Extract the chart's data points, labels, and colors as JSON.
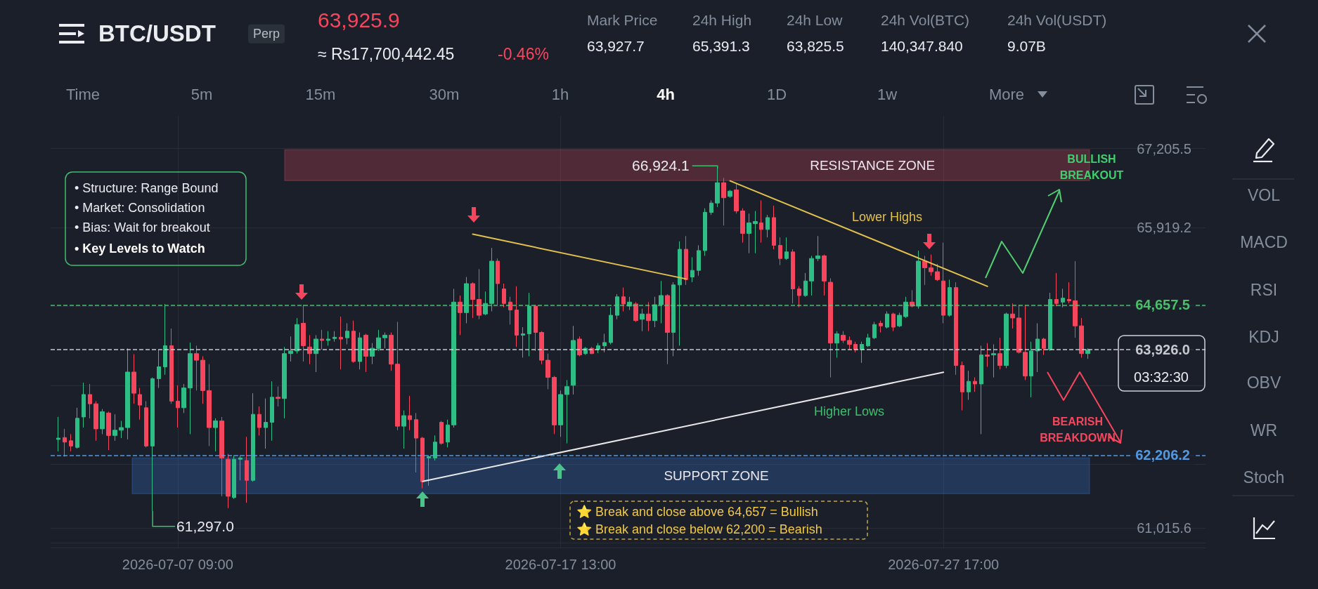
{
  "chart_data": {
    "type": "candlestick",
    "title": "BTC/USDT",
    "annotations": [
      "Perp",
      "63,925.9",
      "≈ Rs17,700,442.45",
      "-0.46%",
      "Mark Price",
      "63,927.7",
      "24h High",
      "65,391.3",
      "24h Low",
      "63,825.5",
      "24h Vol(BTC)",
      "140,347.840",
      "24h Vol(USDT)",
      "9.07B",
      "Time",
      "5m",
      "15m",
      "30m",
      "1h",
      "4h",
      "1D",
      "1w",
      "More",
      "VOL",
      "MACD",
      "RSI",
      "KDJ",
      "OBV",
      "WR",
      "Stoch",
      "• Structure: Range Bound",
      "• Market: Consolidation",
      "• Bias: Wait for breakout",
      "• Key Levels to Watch",
      "⭐ Break and close above 64,657 = Bullish",
      "⭐ Break and close below 62,200 = Bearish",
      {
        "text": "66,924.1",
        "x": "2026-07-21T17:00",
        "y": 66924.1
      },
      {
        "text": "61,297.0",
        "x": "2026-07-06T17:00",
        "y": 61297.0
      },
      "Lower Highs",
      "Higher Lows",
      "BULLISH BREAKOUT",
      "BEARISH BREAKDOWN",
      "03:32:30"
    ],
    "x": [
      "2026-07-04T05:00",
      "2026-07-04T09:00",
      "2026-07-04T13:00",
      "2026-07-04T17:00",
      "2026-07-04T21:00",
      "2026-07-05T01:00",
      "2026-07-05T05:00",
      "2026-07-05T09:00",
      "2026-07-05T13:00",
      "2026-07-05T17:00",
      "2026-07-05T21:00",
      "2026-07-06T01:00",
      "2026-07-06T05:00",
      "2026-07-06T09:00",
      "2026-07-06T13:00",
      "2026-07-06T17:00",
      "2026-07-06T21:00",
      "2026-07-07T01:00",
      "2026-07-07T05:00",
      "2026-07-07T09:00",
      "2026-07-07T13:00",
      "2026-07-07T17:00",
      "2026-07-07T21:00",
      "2026-07-08T01:00",
      "2026-07-08T05:00",
      "2026-07-08T09:00",
      "2026-07-08T13:00",
      "2026-07-08T17:00",
      "2026-07-08T21:00",
      "2026-07-09T01:00",
      "2026-07-09T05:00",
      "2026-07-09T09:00",
      "2026-07-09T13:00",
      "2026-07-09T17:00",
      "2026-07-09T21:00",
      "2026-07-10T01:00",
      "2026-07-10T05:00",
      "2026-07-10T09:00",
      "2026-07-10T13:00",
      "2026-07-10T17:00",
      "2026-07-10T21:00",
      "2026-07-11T01:00",
      "2026-07-11T05:00",
      "2026-07-11T09:00",
      "2026-07-11T13:00",
      "2026-07-11T17:00",
      "2026-07-11T21:00",
      "2026-07-12T01:00",
      "2026-07-12T05:00",
      "2026-07-12T09:00",
      "2026-07-12T13:00",
      "2026-07-12T17:00",
      "2026-07-12T21:00",
      "2026-07-13T01:00",
      "2026-07-13T05:00",
      "2026-07-13T09:00",
      "2026-07-13T13:00",
      "2026-07-13T17:00",
      "2026-07-13T21:00",
      "2026-07-14T01:00",
      "2026-07-14T05:00",
      "2026-07-14T09:00",
      "2026-07-14T13:00",
      "2026-07-14T17:00",
      "2026-07-14T21:00",
      "2026-07-15T01:00",
      "2026-07-15T05:00",
      "2026-07-15T09:00",
      "2026-07-15T13:00",
      "2026-07-15T17:00",
      "2026-07-15T21:00",
      "2026-07-16T01:00",
      "2026-07-16T05:00",
      "2026-07-16T09:00",
      "2026-07-16T13:00",
      "2026-07-16T17:00",
      "2026-07-16T21:00",
      "2026-07-17T01:00",
      "2026-07-17T05:00",
      "2026-07-17T09:00",
      "2026-07-17T13:00",
      "2026-07-17T17:00",
      "2026-07-17T21:00",
      "2026-07-18T01:00",
      "2026-07-18T05:00",
      "2026-07-18T09:00",
      "2026-07-18T13:00",
      "2026-07-18T17:00",
      "2026-07-18T21:00",
      "2026-07-19T01:00",
      "2026-07-19T05:00",
      "2026-07-19T09:00",
      "2026-07-19T13:00",
      "2026-07-19T17:00",
      "2026-07-19T21:00",
      "2026-07-20T01:00",
      "2026-07-20T05:00",
      "2026-07-20T09:00",
      "2026-07-20T13:00",
      "2026-07-20T17:00",
      "2026-07-20T21:00",
      "2026-07-21T01:00",
      "2026-07-21T05:00",
      "2026-07-21T09:00",
      "2026-07-21T13:00",
      "2026-07-21T17:00",
      "2026-07-21T21:00",
      "2026-07-22T01:00",
      "2026-07-22T05:00",
      "2026-07-22T09:00",
      "2026-07-22T13:00",
      "2026-07-22T17:00",
      "2026-07-22T21:00",
      "2026-07-23T01:00",
      "2026-07-23T05:00",
      "2026-07-23T09:00",
      "2026-07-23T13:00",
      "2026-07-23T17:00",
      "2026-07-23T21:00",
      "2026-07-24T01:00",
      "2026-07-24T05:00",
      "2026-07-24T09:00",
      "2026-07-24T13:00",
      "2026-07-24T17:00",
      "2026-07-24T21:00",
      "2026-07-25T01:00",
      "2026-07-25T05:00",
      "2026-07-25T09:00",
      "2026-07-25T13:00",
      "2026-07-25T17:00",
      "2026-07-25T21:00",
      "2026-07-26T01:00",
      "2026-07-26T05:00",
      "2026-07-26T09:00",
      "2026-07-26T13:00",
      "2026-07-26T17:00",
      "2026-07-26T21:00",
      "2026-07-27T01:00",
      "2026-07-27T05:00",
      "2026-07-27T09:00",
      "2026-07-27T13:00",
      "2026-07-27T17:00",
      "2026-07-27T21:00",
      "2026-07-28T01:00",
      "2026-07-28T05:00",
      "2026-07-28T09:00",
      "2026-07-28T13:00",
      "2026-07-28T17:00",
      "2026-07-28T21:00",
      "2026-07-29T01:00",
      "2026-07-29T05:00",
      "2026-07-29T09:00",
      "2026-07-29T13:00",
      "2026-07-29T17:00",
      "2026-07-29T21:00",
      "2026-07-30T01:00",
      "2026-07-30T05:00",
      "2026-07-30T09:00",
      "2026-07-30T13:00",
      "2026-07-30T17:00",
      "2026-07-30T21:00",
      "2026-07-31T01:00",
      "2026-07-31T05:00",
      "2026-07-31T09:00",
      "2026-07-31T13:00"
    ],
    "ohlc": [
      [
        62464,
        62830,
        62270,
        62485
      ],
      [
        62494,
        62636,
        62183,
        62420
      ],
      [
        62442,
        62550,
        62270,
        62356
      ],
      [
        62334,
        62980,
        62313,
        62808
      ],
      [
        62830,
        63389,
        62657,
        63196
      ],
      [
        63196,
        63368,
        62808,
        63045
      ],
      [
        63045,
        63088,
        62442,
        62636
      ],
      [
        62636,
        62959,
        62550,
        62916
      ],
      [
        62894,
        62916,
        62291,
        62528
      ],
      [
        62528,
        62873,
        62442,
        62614
      ],
      [
        62614,
        62765,
        62485,
        62657
      ],
      [
        62657,
        63949,
        62464,
        63562
      ],
      [
        63562,
        63854,
        63045,
        63217
      ],
      [
        63196,
        63303,
        62786,
        63023
      ],
      [
        62980,
        63088,
        62334,
        62356
      ],
      [
        62356,
        63475,
        61297.0,
        63454
      ],
      [
        63454,
        63928,
        63303,
        63648
      ],
      [
        63648,
        64673,
        63518,
        63992
      ],
      [
        63992,
        64272,
        63045,
        63088
      ],
      [
        63088,
        63346,
        62657,
        62980
      ],
      [
        62980,
        63368,
        62894,
        63303
      ],
      [
        63303,
        64044,
        62550,
        63863
      ],
      [
        63863,
        63992,
        63260,
        63755
      ],
      [
        63755,
        63820,
        63045,
        63260
      ],
      [
        63260,
        63691,
        62356,
        62657
      ],
      [
        62657,
        62808,
        62270,
        62765
      ],
      [
        62765,
        62830,
        61537,
        62162
      ],
      [
        62140,
        62227,
        61343,
        61537
      ],
      [
        61516,
        62205,
        61494,
        62140
      ],
      [
        62140,
        62205,
        61796,
        62162
      ],
      [
        62119,
        62506,
        61429,
        61796
      ],
      [
        61796,
        63217,
        61774,
        62873
      ],
      [
        62873,
        63002,
        62528,
        62657
      ],
      [
        62657,
        63131,
        62313,
        62743
      ],
      [
        62743,
        63411,
        62442,
        63152
      ],
      [
        63152,
        63325,
        63002,
        63131
      ],
      [
        63131,
        63971,
        62808,
        63863
      ],
      [
        63863,
        64143,
        63734,
        63906
      ],
      [
        63906,
        64444,
        63863,
        64337
      ],
      [
        64358,
        64660,
        63734,
        63992
      ],
      [
        63971,
        64164,
        63691,
        63863
      ],
      [
        63863,
        64164,
        63562,
        64100
      ],
      [
        64100,
        64251,
        63928,
        64078
      ],
      [
        64078,
        64229,
        63992,
        64100
      ],
      [
        64109,
        64229,
        64057,
        64130
      ],
      [
        64130,
        64466,
        63605,
        64100
      ],
      [
        64121,
        64358,
        64014,
        64229
      ],
      [
        64229,
        64401,
        63712,
        63734
      ],
      [
        63734,
        64208,
        63605,
        64121
      ],
      [
        64164,
        64186,
        63562,
        63820
      ],
      [
        63820,
        64035,
        63691,
        63949
      ],
      [
        63949,
        64251,
        63906,
        64121
      ],
      [
        64121,
        64208,
        63949,
        64164
      ],
      [
        64164,
        64208,
        63583,
        63691
      ],
      [
        63691,
        64380,
        62614,
        62679
      ],
      [
        62679,
        62937,
        62313,
        62851
      ],
      [
        62851,
        63174,
        62614,
        62786
      ],
      [
        62786,
        62894,
        61925,
        62485
      ],
      [
        62485,
        62506,
        61667,
        61774
      ],
      [
        62162,
        62205,
        61710,
        62183
      ],
      [
        62162,
        62528,
        62119,
        62420
      ],
      [
        62743,
        62765,
        62377,
        62399
      ],
      [
        62420,
        62786,
        62334,
        62700
      ],
      [
        62700,
        64919,
        62657,
        64703
      ],
      [
        64703,
        64811,
        64164,
        64531
      ],
      [
        64531,
        65112,
        64358,
        65004
      ],
      [
        65004,
        65026,
        64444,
        64746
      ],
      [
        64746,
        65241,
        64423,
        64488
      ],
      [
        64509,
        64875,
        64488,
        64681
      ],
      [
        64681,
        65586,
        64552,
        65371
      ],
      [
        65371,
        65414,
        64660,
        65004
      ],
      [
        64918,
        65004,
        64617,
        64681
      ],
      [
        64703,
        64789,
        64337,
        64574
      ],
      [
        64574,
        64961,
        63971,
        64164
      ],
      [
        64164,
        64294,
        63798,
        64186
      ],
      [
        64186,
        64854,
        63820,
        64638
      ],
      [
        64638,
        64660,
        63906,
        64208
      ],
      [
        64208,
        64229,
        63691,
        63755
      ],
      [
        63755,
        63863,
        63282,
        63475
      ],
      [
        63475,
        63497,
        62550,
        62700
      ],
      [
        62700,
        63260,
        62506,
        63196
      ],
      [
        63196,
        63432,
        62399,
        63325
      ],
      [
        63346,
        64315,
        63196,
        64078
      ],
      [
        64100,
        64143,
        63820,
        63841
      ],
      [
        63863,
        63971,
        63841,
        63949
      ],
      [
        63949,
        63971,
        63854,
        63863
      ],
      [
        63928,
        64035,
        63871,
        63992
      ],
      [
        63992,
        64186,
        63884,
        64044
      ],
      [
        64044,
        64617,
        64014,
        64488
      ],
      [
        64488,
        64832,
        64423,
        64789
      ],
      [
        64789,
        64940,
        64552,
        64673
      ],
      [
        64638,
        64789,
        64574,
        64703
      ],
      [
        64673,
        64703,
        64380,
        64401
      ],
      [
        64423,
        64595,
        64229,
        64509
      ],
      [
        64509,
        64703,
        64229,
        64401
      ],
      [
        64401,
        64789,
        64294,
        64660
      ],
      [
        64660,
        65047,
        64358,
        64810
      ],
      [
        64810,
        64832,
        63691,
        64208
      ],
      [
        64208,
        65026,
        63820,
        64983
      ],
      [
        64983,
        65694,
        63992,
        65564
      ],
      [
        65564,
        65780,
        64983,
        65069
      ],
      [
        65112,
        65435,
        65026,
        65220
      ],
      [
        65220,
        65629,
        65134,
        65543
      ],
      [
        65543,
        66232,
        65457,
        66167
      ],
      [
        66167,
        66361,
        66124,
        66318
      ],
      [
        66318,
        66924.1,
        66254,
        66650
      ],
      [
        66650,
        66727,
        65952,
        66404
      ],
      [
        66426,
        66533,
        66404,
        66512
      ],
      [
        66533,
        66628,
        66146,
        66189
      ],
      [
        66189,
        66232,
        65672,
        65823
      ],
      [
        65823,
        66146,
        65500,
        65995
      ],
      [
        65982,
        66189,
        65500,
        66017
      ],
      [
        65995,
        66361,
        65672,
        65887
      ],
      [
        65887,
        66124,
        65758,
        66081
      ],
      [
        66081,
        66275,
        65564,
        65629
      ],
      [
        65629,
        65758,
        65306,
        65414
      ],
      [
        65414,
        65758,
        65392,
        65521
      ],
      [
        65521,
        65564,
        64681,
        64918
      ],
      [
        64918,
        64961,
        64617,
        64810
      ],
      [
        64810,
        65177,
        64789,
        65047
      ],
      [
        65047,
        65457,
        64810,
        65414
      ],
      [
        65414,
        65780,
        65371,
        65457
      ],
      [
        65457,
        65478,
        64810,
        65047
      ],
      [
        65026,
        65091,
        63475,
        64035
      ],
      [
        64035,
        64229,
        63798,
        64186
      ],
      [
        64164,
        64229,
        64035,
        64078
      ],
      [
        64078,
        64143,
        63928,
        64014
      ],
      [
        64014,
        64057,
        63884,
        63928
      ],
      [
        63928,
        64057,
        63712,
        64014
      ],
      [
        63992,
        64186,
        63971,
        64121
      ],
      [
        64121,
        64380,
        64100,
        64337
      ],
      [
        64358,
        64401,
        64208,
        64315
      ],
      [
        64294,
        64552,
        64272,
        64509
      ],
      [
        64509,
        64531,
        64229,
        64294
      ],
      [
        64315,
        64531,
        64294,
        64488
      ],
      [
        64466,
        64789,
        64444,
        64703
      ],
      [
        64703,
        64897,
        64617,
        64638
      ],
      [
        64638,
        65543,
        64595,
        65371
      ],
      [
        65371,
        65457,
        64983,
        65263
      ],
      [
        65263,
        65478,
        65134,
        65198
      ],
      [
        65198,
        65327,
        65047,
        65069
      ],
      [
        65047,
        65672,
        64358,
        64488
      ],
      [
        64488,
        65069,
        64466,
        64940
      ],
      [
        64940,
        65026,
        63518,
        63669
      ],
      [
        63669,
        63734,
        62937,
        63239
      ],
      [
        63239,
        63583,
        63109,
        63411
      ],
      [
        63411,
        63475,
        63239,
        63368
      ],
      [
        63368,
        63992,
        62550,
        63841
      ],
      [
        63841,
        64035,
        63648,
        63820
      ],
      [
        63841,
        64014,
        63475,
        63863
      ],
      [
        63863,
        64121,
        63605,
        63669
      ],
      [
        63669,
        64531,
        63626,
        64509
      ],
      [
        64509,
        64681,
        64272,
        64444
      ],
      [
        64444,
        64660,
        63863,
        63884
      ],
      [
        63884,
        64660,
        63432,
        63497
      ],
      [
        63497,
        64057,
        63152,
        63906
      ],
      [
        63906,
        64358,
        63562,
        64100
      ],
      [
        64100,
        64121,
        63841,
        63949
      ],
      [
        63928,
        64854,
        63906,
        64746
      ],
      [
        64746,
        65177,
        64638,
        64681
      ],
      [
        64703,
        64919,
        64617,
        64768
      ],
      [
        64746,
        65026,
        64681,
        64725
      ],
      [
        64725,
        65371,
        64121,
        64315
      ],
      [
        64315,
        64444,
        63798,
        63863
      ],
      [
        63863,
        63950,
        63777,
        63926.0
      ]
    ],
    "colors": [
      "#2ebd85",
      "#f6465d",
      "#f6465d",
      "#2ebd85",
      "#2ebd85",
      "#f6465d",
      "#f6465d",
      "#2ebd85",
      "#f6465d",
      "#2ebd85",
      "#2ebd85",
      "#2ebd85",
      "#f6465d",
      "#f6465d",
      "#f6465d",
      "#2ebd85",
      "#2ebd85",
      "#2ebd85",
      "#f6465d",
      "#f6465d",
      "#2ebd85",
      "#2ebd85",
      "#f6465d",
      "#f6465d",
      "#f6465d",
      "#2ebd85",
      "#f6465d",
      "#f6465d",
      "#2ebd85",
      "#2ebd85",
      "#f6465d",
      "#2ebd85",
      "#f6465d",
      "#2ebd85",
      "#2ebd85",
      "#f6465d",
      "#2ebd85",
      "#2ebd85",
      "#2ebd85",
      "#f6465d",
      "#f6465d",
      "#2ebd85",
      "#f6465d",
      "#2ebd85",
      "#2ebd85",
      "#f6465d",
      "#2ebd85",
      "#f6465d",
      "#2ebd85",
      "#f6465d",
      "#2ebd85",
      "#2ebd85",
      "#2ebd85",
      "#f6465d",
      "#f6465d",
      "#2ebd85",
      "#f6465d",
      "#f6465d",
      "#f6465d",
      "#2ebd85",
      "#2ebd85",
      "#f6465d",
      "#2ebd85",
      "#2ebd85",
      "#f6465d",
      "#2ebd85",
      "#f6465d",
      "#f6465d",
      "#2ebd85",
      "#2ebd85",
      "#f6465d",
      "#f6465d",
      "#f6465d",
      "#f6465d",
      "#2ebd85",
      "#2ebd85",
      "#f6465d",
      "#f6465d",
      "#f6465d",
      "#f6465d",
      "#2ebd85",
      "#2ebd85",
      "#2ebd85",
      "#f6465d",
      "#2ebd85",
      "#f6465d",
      "#2ebd85",
      "#2ebd85",
      "#2ebd85",
      "#2ebd85",
      "#f6465d",
      "#2ebd85",
      "#f6465d",
      "#2ebd85",
      "#f6465d",
      "#2ebd85",
      "#2ebd85",
      "#f6465d",
      "#2ebd85",
      "#2ebd85",
      "#f6465d",
      "#2ebd85",
      "#2ebd85",
      "#2ebd85",
      "#2ebd85",
      "#2ebd85",
      "#f6465d",
      "#2ebd85",
      "#f6465d",
      "#f6465d",
      "#2ebd85",
      "#2ebd85",
      "#f6465d",
      "#2ebd85",
      "#f6465d",
      "#f6465d",
      "#2ebd85",
      "#f6465d",
      "#f6465d",
      "#2ebd85",
      "#2ebd85",
      "#2ebd85",
      "#f6465d",
      "#f6465d",
      "#2ebd85",
      "#f6465d",
      "#f6465d",
      "#f6465d",
      "#2ebd85",
      "#2ebd85",
      "#2ebd85",
      "#f6465d",
      "#2ebd85",
      "#f6465d",
      "#2ebd85",
      "#2ebd85",
      "#f6465d",
      "#2ebd85",
      "#f6465d",
      "#f6465d",
      "#f6465d",
      "#f6465d",
      "#2ebd85",
      "#f6465d",
      "#f6465d",
      "#2ebd85",
      "#f6465d",
      "#2ebd85",
      "#f6465d",
      "#2ebd85",
      "#f6465d",
      "#2ebd85",
      "#f6465d",
      "#f6465d",
      "#f6465d",
      "#2ebd85",
      "#2ebd85",
      "#f6465d",
      "#2ebd85",
      "#f6465d",
      "#2ebd85",
      "#f6465d",
      "#f6465d",
      "#f6465d",
      "#2ebd85"
    ],
    "series": [
      {
        "type": "line",
        "color": "#e3c14d",
        "x": [
          "2026-07-15T05:00",
          "2026-07-20T21:00"
        ],
        "values": [
          65810,
          65080
        ]
      },
      {
        "type": "line",
        "color": "#e3c14d",
        "x": [
          "2026-07-22T01:00",
          "2026-07-28T21:00"
        ],
        "values": [
          66680,
          64960
        ]
      },
      {
        "type": "line",
        "color": "#e8e8e8",
        "x": [
          "2026-07-13T21:00",
          "2026-07-27T17:00"
        ],
        "values": [
          61780,
          63560
        ]
      }
    ],
    "marker": "none",
    "ref_lines": [
      {
        "axis": "y",
        "value": 64657.5,
        "label": "64,657.5",
        "color": "#4fcf72",
        "line_style": "dashed"
      },
      {
        "axis": "y",
        "value": 62206.2,
        "label": "62,206.2",
        "color": "#5aa6f5",
        "line_style": "dashed"
      },
      {
        "axis": "y",
        "value": 63926.0,
        "label": "63,926.0",
        "color": "#d8dbe0",
        "line_style": "dashed"
      }
    ],
    "bands": [
      {
        "axis": "y",
        "from": 66684,
        "to": 67188,
        "label": "RESISTANCE ZONE",
        "color": "#e0485a"
      },
      {
        "axis": "y",
        "from": 61580,
        "to": 62162,
        "label": "SUPPORT ZONE",
        "color": "#3a7bd5"
      }
    ],
    "xlim": [
      "2026-07-04T00:00",
      "2026-08-03T16:00"
    ],
    "xticks": [
      {
        "value": "2026-07-07T09:00",
        "label": "2026-07-07 09:00"
      },
      {
        "value": "2026-07-17T13:00",
        "label": "2026-07-17 13:00"
      },
      {
        "value": "2026-07-27T17:00",
        "label": "2026-07-27 17:00"
      }
    ],
    "ylim": [
      60700,
      67740
    ],
    "yticks": [
      {
        "value": 60774.0,
        "label": null
      },
      {
        "value": 61015.6,
        "label": "61,015.6"
      },
      {
        "value": 62060.3,
        "label": null
      },
      {
        "value": 63346.6,
        "label": null
      },
      {
        "value": 64632.9,
        "label": null
      },
      {
        "value": 65919.2,
        "label": "65,919.2"
      },
      {
        "value": 67205.5,
        "label": "67,205.5"
      }
    ],
    "grid": true
  }
}
